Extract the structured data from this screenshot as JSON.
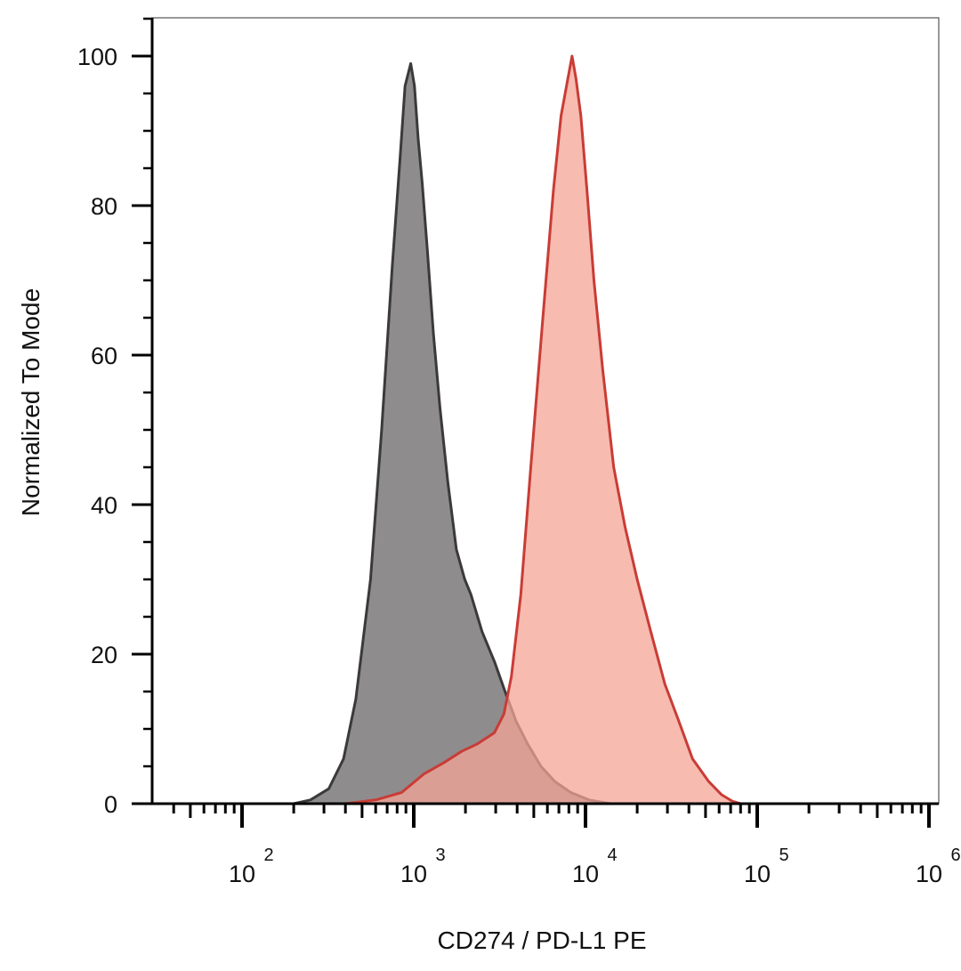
{
  "chart_data": {
    "type": "area",
    "xlabel": "CD274 / PD-L1 PE",
    "ylabel": "Normalized To Mode",
    "x_scale": "log",
    "xlim": [
      20,
      1100000
    ],
    "ylim": [
      0,
      105
    ],
    "y_ticks": [
      {
        "value": 0,
        "label": "0"
      },
      {
        "value": 20,
        "label": "20"
      },
      {
        "value": 40,
        "label": "40"
      },
      {
        "value": 60,
        "label": "60"
      },
      {
        "value": 80,
        "label": "80"
      },
      {
        "value": 100,
        "label": "100"
      }
    ],
    "x_ticks": [
      {
        "value": 100,
        "base": "10",
        "exp": "2"
      },
      {
        "value": 1000,
        "base": "10",
        "exp": "3"
      },
      {
        "value": 10000,
        "base": "10",
        "exp": "4"
      },
      {
        "value": 100000,
        "base": "10",
        "exp": "5"
      },
      {
        "value": 1000000,
        "base": "10",
        "exp": "6"
      }
    ],
    "series": [
      {
        "fill": "#8f8c8e",
        "stroke": "#3a3a3a",
        "points": [
          [
            20,
            0
          ],
          [
            200,
            0
          ],
          [
            250,
            0.5
          ],
          [
            320,
            2
          ],
          [
            390,
            6
          ],
          [
            460,
            14
          ],
          [
            560,
            30
          ],
          [
            650,
            50
          ],
          [
            750,
            72
          ],
          [
            830,
            86
          ],
          [
            890,
            96
          ],
          [
            960,
            99
          ],
          [
            1010,
            96
          ],
          [
            1060,
            89
          ],
          [
            1120,
            83
          ],
          [
            1200,
            74
          ],
          [
            1300,
            63
          ],
          [
            1420,
            53
          ],
          [
            1580,
            43
          ],
          [
            1770,
            34
          ],
          [
            1980,
            30
          ],
          [
            2150,
            28
          ],
          [
            2500,
            23
          ],
          [
            2950,
            19
          ],
          [
            3400,
            15
          ],
          [
            3950,
            11
          ],
          [
            4600,
            8
          ],
          [
            5500,
            5
          ],
          [
            6600,
            3
          ],
          [
            8200,
            1.5
          ],
          [
            10500,
            0.5
          ],
          [
            14000,
            0
          ],
          [
            1100000,
            0
          ]
        ]
      },
      {
        "fill": "#f4a496",
        "stroke": "#c93c36",
        "fill_opacity": 0.75,
        "points": [
          [
            20,
            0
          ],
          [
            400,
            0
          ],
          [
            600,
            0.5
          ],
          [
            850,
            1.5
          ],
          [
            1150,
            4
          ],
          [
            1500,
            5.5
          ],
          [
            1900,
            7
          ],
          [
            2350,
            8
          ],
          [
            2950,
            9.5
          ],
          [
            3350,
            12
          ],
          [
            3700,
            17
          ],
          [
            4200,
            28
          ],
          [
            4800,
            45
          ],
          [
            5600,
            64
          ],
          [
            6500,
            82
          ],
          [
            7200,
            92
          ],
          [
            7900,
            97
          ],
          [
            8350,
            100
          ],
          [
            8800,
            97
          ],
          [
            9400,
            92
          ],
          [
            10200,
            82
          ],
          [
            11200,
            70
          ],
          [
            12600,
            58
          ],
          [
            14600,
            45
          ],
          [
            17000,
            37
          ],
          [
            20000,
            30
          ],
          [
            24000,
            23
          ],
          [
            29000,
            16
          ],
          [
            35000,
            11
          ],
          [
            42000,
            6
          ],
          [
            52000,
            3
          ],
          [
            62000,
            1.2
          ],
          [
            72000,
            0.3
          ],
          [
            80000,
            0
          ],
          [
            1100000,
            0
          ]
        ]
      }
    ]
  }
}
